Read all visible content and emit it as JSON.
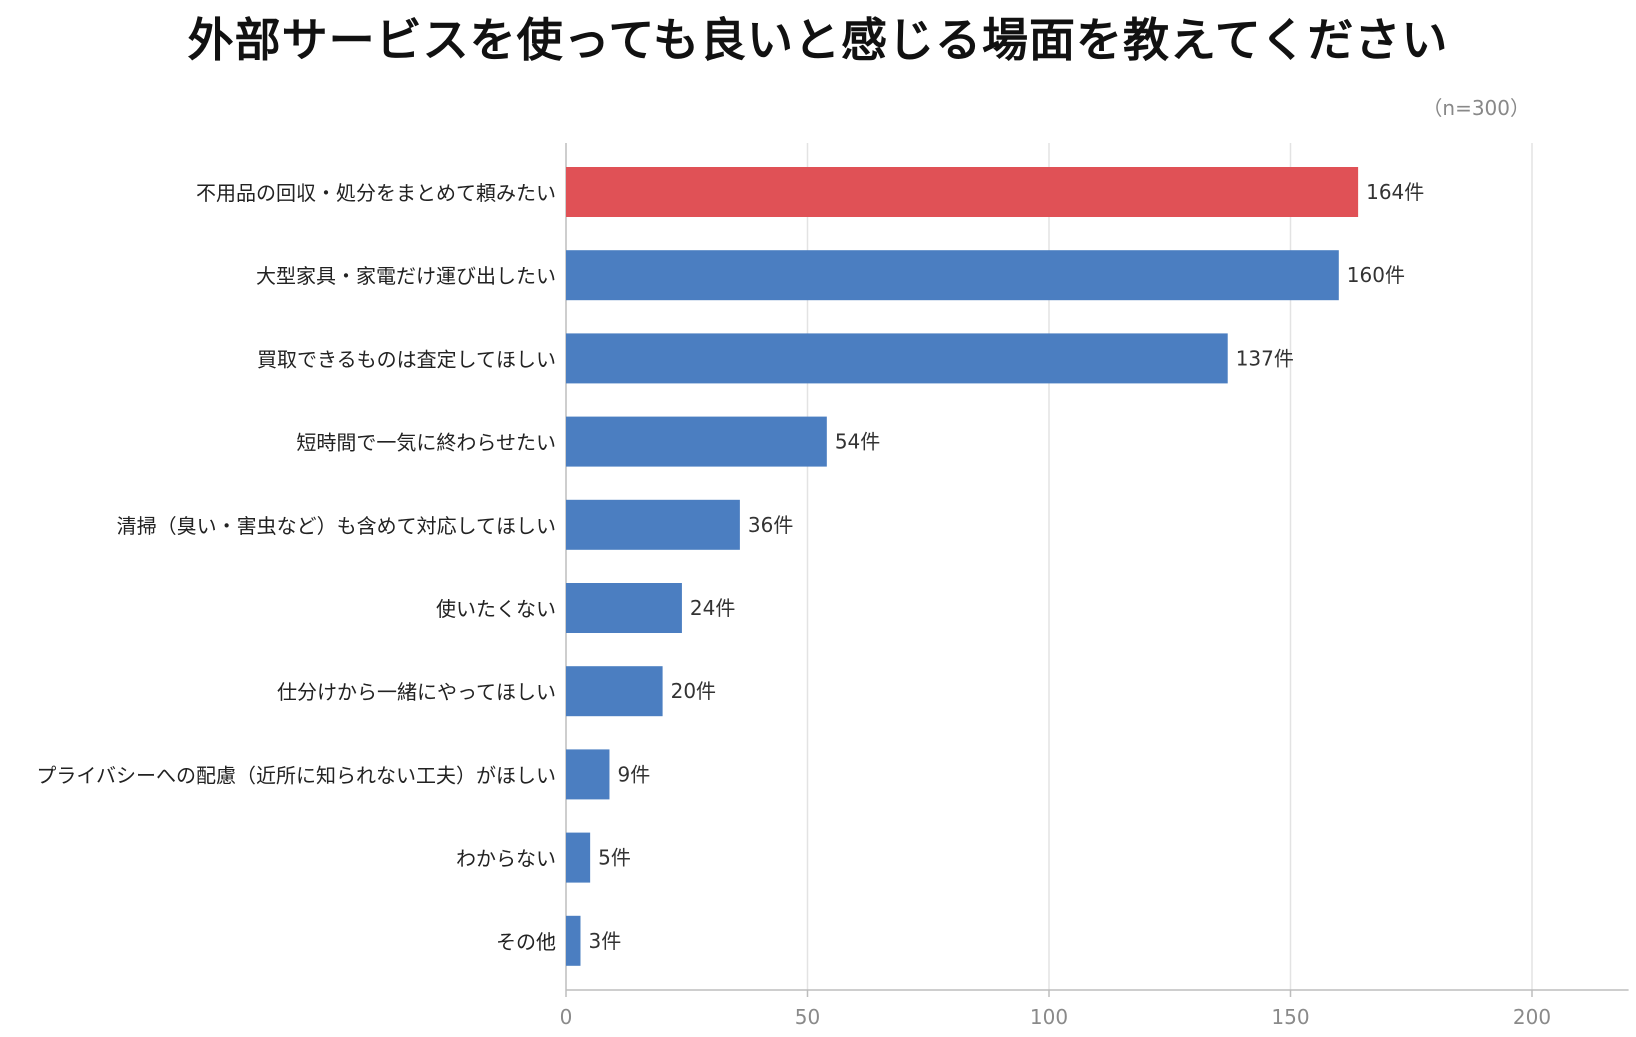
{
  "chart_data": {
    "type": "bar",
    "orientation": "horizontal",
    "title": "外部サービスを使っても良いと感じる場面を教えてください",
    "note": "（n=300）",
    "unit_suffix": "件",
    "categories": [
      "不用品の回収・処分をまとめて頼みたい",
      "大型家具・家電だけ運び出したい",
      "買取できるものは査定してほしい",
      "短時間で一気に終わらせたい",
      "清掃（臭い・害虫など）も含めて対応してほしい",
      "使いたくない",
      "仕分けから一緒にやってほしい",
      "プライバシーへの配慮（近所に知られない工夫）がほしい",
      "わからない",
      "その他"
    ],
    "values": [
      164,
      160,
      137,
      54,
      36,
      24,
      20,
      9,
      5,
      3
    ],
    "value_labels": [
      "164件",
      "160件",
      "137件",
      "54件",
      "36件",
      "24件",
      "20件",
      "9件",
      "5件",
      "3件"
    ],
    "highlight_index": 0,
    "colors": {
      "highlight": "#e05156",
      "default": "#4b7ec1",
      "grid": "#e3e3e3",
      "axis": "#bdbdbd"
    },
    "xlim": [
      0,
      220
    ],
    "xticks": [
      0,
      50,
      100,
      150,
      200
    ],
    "xtick_labels": [
      "0",
      "50",
      "100",
      "150",
      "200"
    ],
    "grid": true,
    "xlabel": "",
    "ylabel": ""
  }
}
